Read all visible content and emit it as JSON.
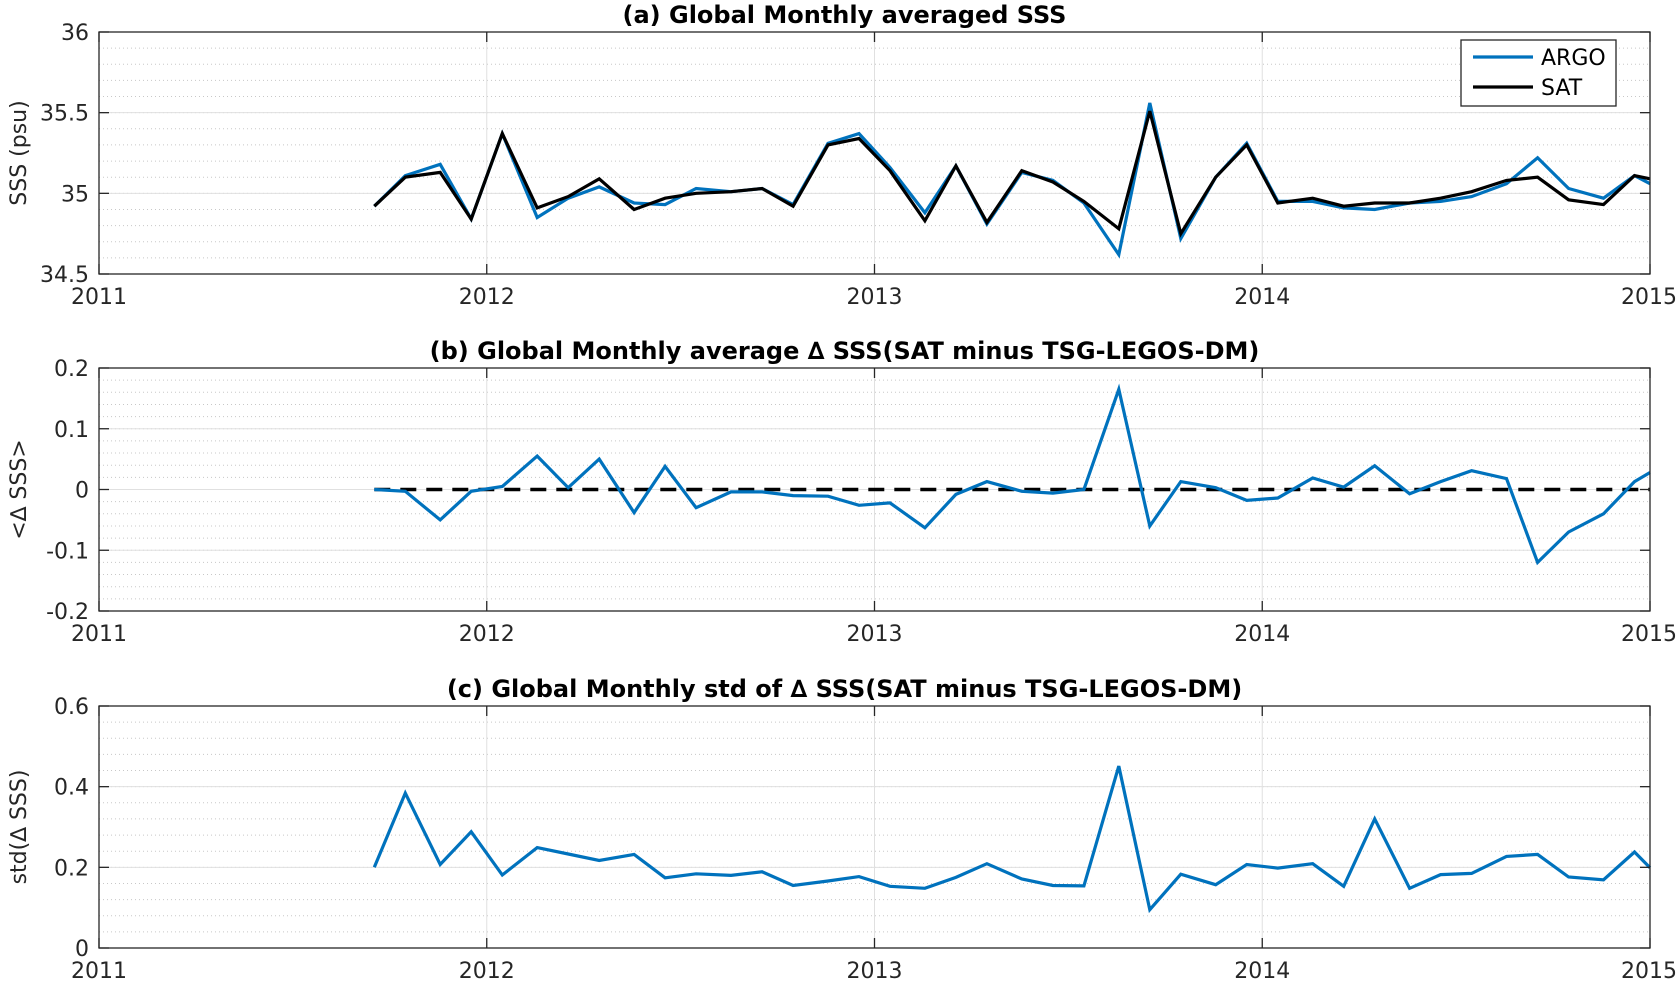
{
  "chart_data": [
    {
      "type": "line",
      "title": "(a) Global Monthly averaged SSS",
      "xlabel": "",
      "ylabel": "SSS (psu)",
      "x_ticks": [
        "2011",
        "2012",
        "2013",
        "2014",
        "2015"
      ],
      "xlim": [
        2011,
        2015
      ],
      "ylim": [
        34.5,
        36
      ],
      "y_ticks": [
        "34.5",
        "35",
        "35.5",
        "36"
      ],
      "grid": true,
      "minor_grid": true,
      "legend": "top-right",
      "x": [
        2011.71,
        2011.79,
        2011.88,
        2011.96,
        2012.04,
        2012.13,
        2012.21,
        2012.29,
        2012.38,
        2012.46,
        2012.54,
        2012.63,
        2012.71,
        2012.79,
        2012.88,
        2012.96,
        2013.04,
        2013.13,
        2013.21,
        2013.29,
        2013.38,
        2013.46,
        2013.54,
        2013.63,
        2013.71,
        2013.79,
        2013.88,
        2013.96,
        2014.04,
        2014.13,
        2014.21,
        2014.29,
        2014.38,
        2014.46,
        2014.54,
        2014.63,
        2014.71,
        2014.79,
        2014.88,
        2014.96,
        2015.0
      ],
      "series": [
        {
          "name": "ARGO",
          "color": "#0072BD",
          "values": [
            34.92,
            35.11,
            35.18,
            34.84,
            35.37,
            34.85,
            34.97,
            35.04,
            34.94,
            34.93,
            35.03,
            35.01,
            35.03,
            34.93,
            35.31,
            35.37,
            35.16,
            34.88,
            35.17,
            34.81,
            35.13,
            35.08,
            34.94,
            34.62,
            35.56,
            34.72,
            35.1,
            35.31,
            34.95,
            34.95,
            34.91,
            34.9,
            34.94,
            34.95,
            34.98,
            35.06,
            35.22,
            35.03,
            34.97,
            35.11,
            35.06
          ]
        },
        {
          "name": "SAT",
          "color": "#000000",
          "values": [
            34.92,
            35.1,
            35.13,
            34.84,
            35.37,
            34.91,
            34.98,
            35.09,
            34.9,
            34.97,
            35.0,
            35.01,
            35.03,
            34.92,
            35.3,
            35.34,
            35.14,
            34.83,
            35.17,
            34.82,
            35.14,
            35.07,
            34.95,
            34.78,
            35.51,
            34.75,
            35.1,
            35.3,
            34.94,
            34.97,
            34.92,
            34.94,
            34.94,
            34.97,
            35.01,
            35.08,
            35.1,
            34.96,
            34.93,
            35.11,
            35.09
          ]
        }
      ]
    },
    {
      "type": "line",
      "title": "(b) Global Monthly average ∆ SSS(SAT minus TSG-LEGOS-DM)",
      "xlabel": "",
      "ylabel": "<∆ SSS>",
      "x_ticks": [
        "2011",
        "2012",
        "2013",
        "2014",
        "2015"
      ],
      "xlim": [
        2011,
        2015
      ],
      "ylim": [
        -0.2,
        0.2
      ],
      "y_ticks": [
        "-0.2",
        "-0.1",
        "0",
        "0.1",
        "0.2"
      ],
      "grid": true,
      "minor_grid": true,
      "reference_line": {
        "y": 0,
        "style": "dashed",
        "color": "#000000",
        "x_range": [
          2011.71,
          2015.0
        ]
      },
      "x": [
        2011.71,
        2011.79,
        2011.88,
        2011.96,
        2012.04,
        2012.13,
        2012.21,
        2012.29,
        2012.38,
        2012.46,
        2012.54,
        2012.63,
        2012.71,
        2012.79,
        2012.88,
        2012.96,
        2013.04,
        2013.13,
        2013.21,
        2013.29,
        2013.38,
        2013.46,
        2013.54,
        2013.63,
        2013.71,
        2013.79,
        2013.88,
        2013.96,
        2014.04,
        2014.13,
        2014.21,
        2014.29,
        2014.38,
        2014.46,
        2014.54,
        2014.63,
        2014.71,
        2014.79,
        2014.88,
        2014.96,
        2015.0
      ],
      "series": [
        {
          "color": "#0072BD",
          "values": [
            0.0,
            -0.003,
            -0.05,
            -0.003,
            0.005,
            0.055,
            0.003,
            0.05,
            -0.038,
            0.038,
            -0.03,
            -0.004,
            -0.004,
            -0.01,
            -0.011,
            -0.026,
            -0.022,
            -0.063,
            -0.008,
            0.013,
            -0.003,
            -0.006,
            0.0,
            0.165,
            -0.06,
            0.013,
            0.003,
            -0.018,
            -0.014,
            0.019,
            0.004,
            0.039,
            -0.007,
            0.013,
            0.031,
            0.018,
            -0.12,
            -0.07,
            -0.04,
            0.013,
            0.028
          ]
        }
      ]
    },
    {
      "type": "line",
      "title": "(c) Global Monthly std of ∆ SSS(SAT minus TSG-LEGOS-DM)",
      "xlabel": "",
      "ylabel": "std(∆ SSS)",
      "x_ticks": [
        "2011",
        "2012",
        "2013",
        "2014",
        "2015"
      ],
      "xlim": [
        2011,
        2015
      ],
      "ylim": [
        0,
        0.6
      ],
      "y_ticks": [
        "0",
        "0.2",
        "0.4",
        "0.6"
      ],
      "grid": true,
      "minor_grid": true,
      "x": [
        2011.71,
        2011.79,
        2011.88,
        2011.96,
        2012.04,
        2012.13,
        2012.21,
        2012.29,
        2012.38,
        2012.46,
        2012.54,
        2012.63,
        2012.71,
        2012.79,
        2012.88,
        2012.96,
        2013.04,
        2013.13,
        2013.21,
        2013.29,
        2013.38,
        2013.46,
        2013.54,
        2013.63,
        2013.71,
        2013.79,
        2013.88,
        2013.96,
        2014.04,
        2014.13,
        2014.21,
        2014.29,
        2014.38,
        2014.46,
        2014.54,
        2014.63,
        2014.71,
        2014.79,
        2014.88,
        2014.96,
        2015.0
      ],
      "series": [
        {
          "color": "#0072BD",
          "values": [
            0.2,
            0.384,
            0.207,
            0.288,
            0.181,
            0.249,
            0.233,
            0.217,
            0.232,
            0.174,
            0.184,
            0.18,
            0.189,
            0.155,
            0.166,
            0.177,
            0.153,
            0.148,
            0.175,
            0.209,
            0.171,
            0.155,
            0.154,
            0.451,
            0.095,
            0.183,
            0.157,
            0.207,
            0.198,
            0.209,
            0.153,
            0.32,
            0.148,
            0.182,
            0.185,
            0.227,
            0.232,
            0.176,
            0.169,
            0.238,
            0.199
          ]
        }
      ]
    }
  ]
}
